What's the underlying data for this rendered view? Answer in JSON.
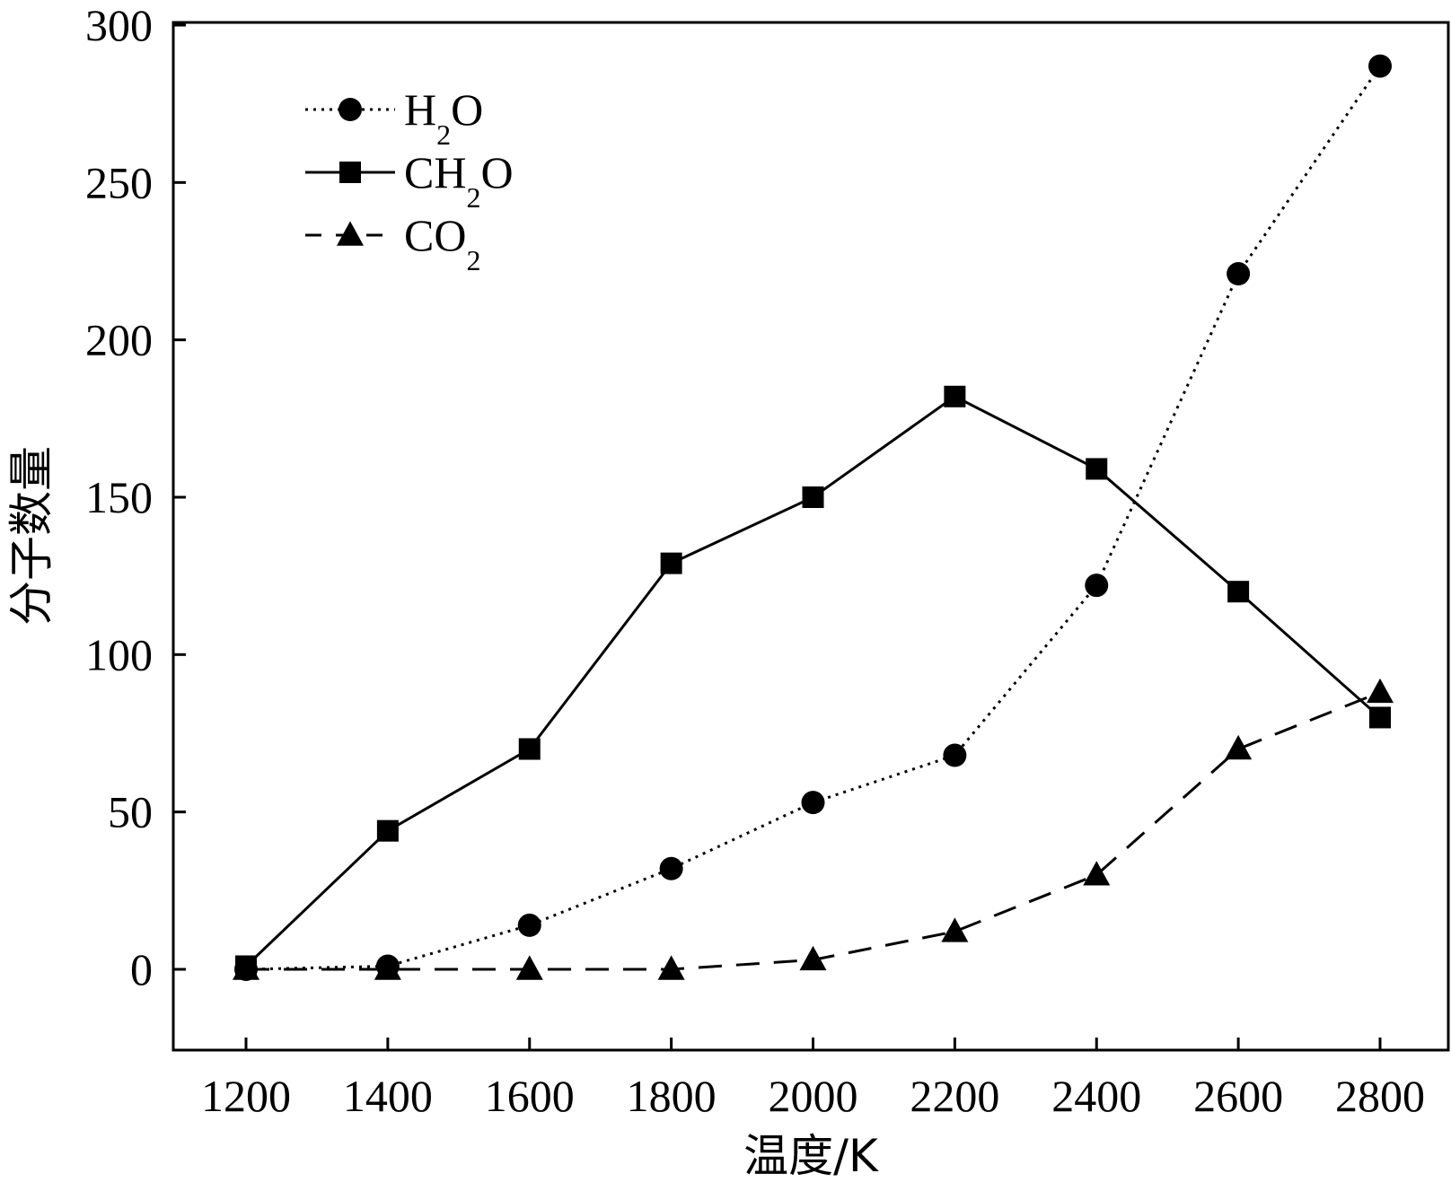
{
  "chart_data": {
    "type": "line",
    "title": "",
    "xlabel": "温度/K",
    "ylabel": "分子数量",
    "x": [
      1200,
      1400,
      1600,
      1800,
      2000,
      2200,
      2400,
      2600,
      2800
    ],
    "xlim": [
      1100,
      2900
    ],
    "ylim": [
      -25,
      300
    ],
    "xticks": [
      1200,
      1400,
      1600,
      1800,
      2000,
      2200,
      2400,
      2600,
      2800
    ],
    "yticks": [
      0,
      50,
      100,
      150,
      200,
      250,
      300
    ],
    "grid": false,
    "legend_position": "top-left",
    "series": [
      {
        "name": "H2O",
        "label_main": "H",
        "label_sub": "2",
        "label_tail": "O",
        "marker": "circle",
        "line_style": "dotted",
        "color": "#000000",
        "values": [
          0,
          1,
          14,
          32,
          53,
          68,
          122,
          221,
          287
        ]
      },
      {
        "name": "CH2O",
        "label_main": "CH",
        "label_sub": "2",
        "label_tail": "O",
        "marker": "square",
        "line_style": "solid",
        "color": "#000000",
        "values": [
          1,
          44,
          70,
          129,
          150,
          182,
          159,
          120,
          80
        ]
      },
      {
        "name": "CO2",
        "label_main": "CO",
        "label_sub": "2",
        "label_tail": "",
        "marker": "triangle",
        "line_style": "dashed",
        "color": "#000000",
        "values": [
          0,
          0,
          0,
          0,
          3,
          12,
          30,
          70,
          88
        ]
      }
    ]
  }
}
